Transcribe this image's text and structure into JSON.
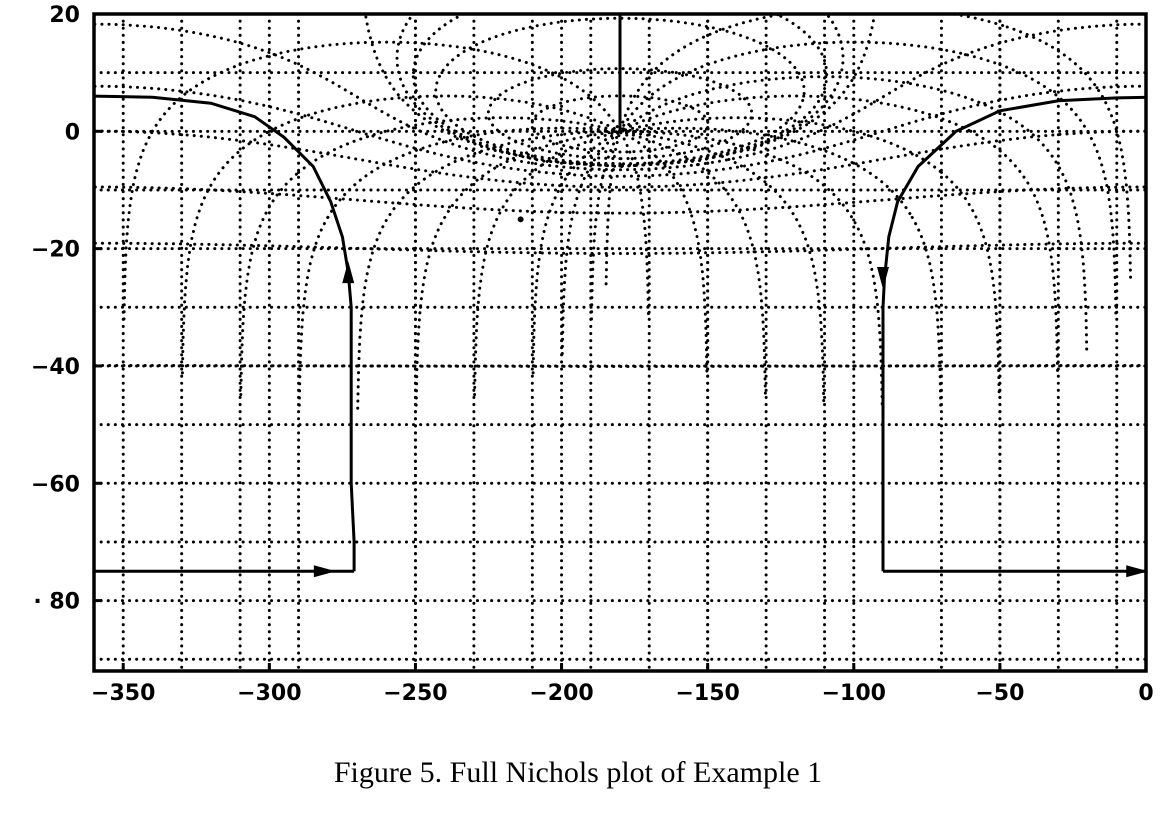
{
  "chart_data": {
    "type": "line",
    "title": "",
    "xlabel": "",
    "ylabel": "",
    "xlim": [
      -360,
      0
    ],
    "ylim": [
      -92,
      20
    ],
    "x_ticks": [
      -350,
      -300,
      -250,
      -200,
      -150,
      -100,
      -50,
      0
    ],
    "x_tick_labels": [
      "−350",
      "−300",
      "−250",
      "−200",
      "−150",
      "−100",
      "−50",
      "0"
    ],
    "y_ticks": [
      20,
      0,
      -20,
      -40,
      -60,
      -80
    ],
    "y_tick_labels": [
      "20",
      "0",
      "−20",
      "−40",
      "−60",
      "· 80"
    ],
    "grid": {
      "visible": true,
      "style": "dotted",
      "vertical_lines": [
        -330,
        -310,
        -290,
        -250,
        -230,
        -210,
        -190,
        -170,
        -150,
        -130,
        -110,
        -70,
        -50,
        -30,
        -10
      ],
      "horizontal_lines": [
        10,
        -10,
        -30,
        -50,
        -70,
        -90
      ],
      "m_contours_db": [
        6,
        3,
        1,
        0.5,
        0.25,
        0,
        -1,
        -3,
        -6,
        -12,
        -20,
        -40
      ],
      "n_contours_deg": [
        -5,
        -10,
        -20,
        -30,
        -50,
        -70,
        -90,
        -110,
        -130,
        -150,
        -170
      ]
    },
    "series": [
      {
        "points": [
          [
            -360,
            6
          ],
          [
            -340,
            5.8
          ],
          [
            -320,
            4.8
          ],
          [
            -305,
            2.5
          ],
          [
            -295,
            -1
          ],
          [
            -285,
            -6
          ],
          [
            -279,
            -12
          ],
          [
            -275,
            -18
          ],
          [
            -273,
            -24
          ],
          [
            -272,
            -30
          ],
          [
            -272,
            -40
          ],
          [
            -272,
            -50
          ],
          [
            -272,
            -60
          ],
          [
            -271,
            -70
          ],
          [
            -271,
            -75
          ]
        ],
        "arrow_at": [
          -273,
          -24
        ],
        "arrow_direction": "up"
      },
      {
        "points": [
          [
            -360,
            -75
          ],
          [
            -271,
            -75
          ]
        ],
        "arrow_at": [
          -281,
          -75
        ],
        "arrow_direction": "right"
      },
      {
        "points": [
          [
            -90,
            -75
          ],
          [
            -90,
            -60
          ],
          [
            -90,
            -50
          ],
          [
            -90,
            -40
          ],
          [
            -90,
            -30
          ],
          [
            -89.5,
            -25
          ],
          [
            -88,
            -18
          ],
          [
            -85,
            -12
          ],
          [
            -78,
            -6
          ],
          [
            -65,
            0
          ],
          [
            -50,
            3.5
          ],
          [
            -30,
            5.2
          ],
          [
            -10,
            5.7
          ],
          [
            0,
            5.8
          ]
        ],
        "arrow_at": [
          -90,
          -25
        ],
        "arrow_direction": "down"
      },
      {
        "points": [
          [
            -90,
            -75
          ],
          [
            0,
            -75
          ]
        ],
        "arrow_at": [
          -3,
          -75
        ],
        "arrow_direction": "right"
      },
      {
        "points": [
          [
            -180,
            20
          ],
          [
            -180,
            0
          ]
        ]
      }
    ],
    "annotations": [
      {
        "x": -214,
        "y": -15,
        "text": "·"
      }
    ]
  },
  "caption": "Figure 5.  Full Nichols plot of Example 1",
  "colors": {
    "ink": "#000000",
    "background": "#ffffff"
  }
}
